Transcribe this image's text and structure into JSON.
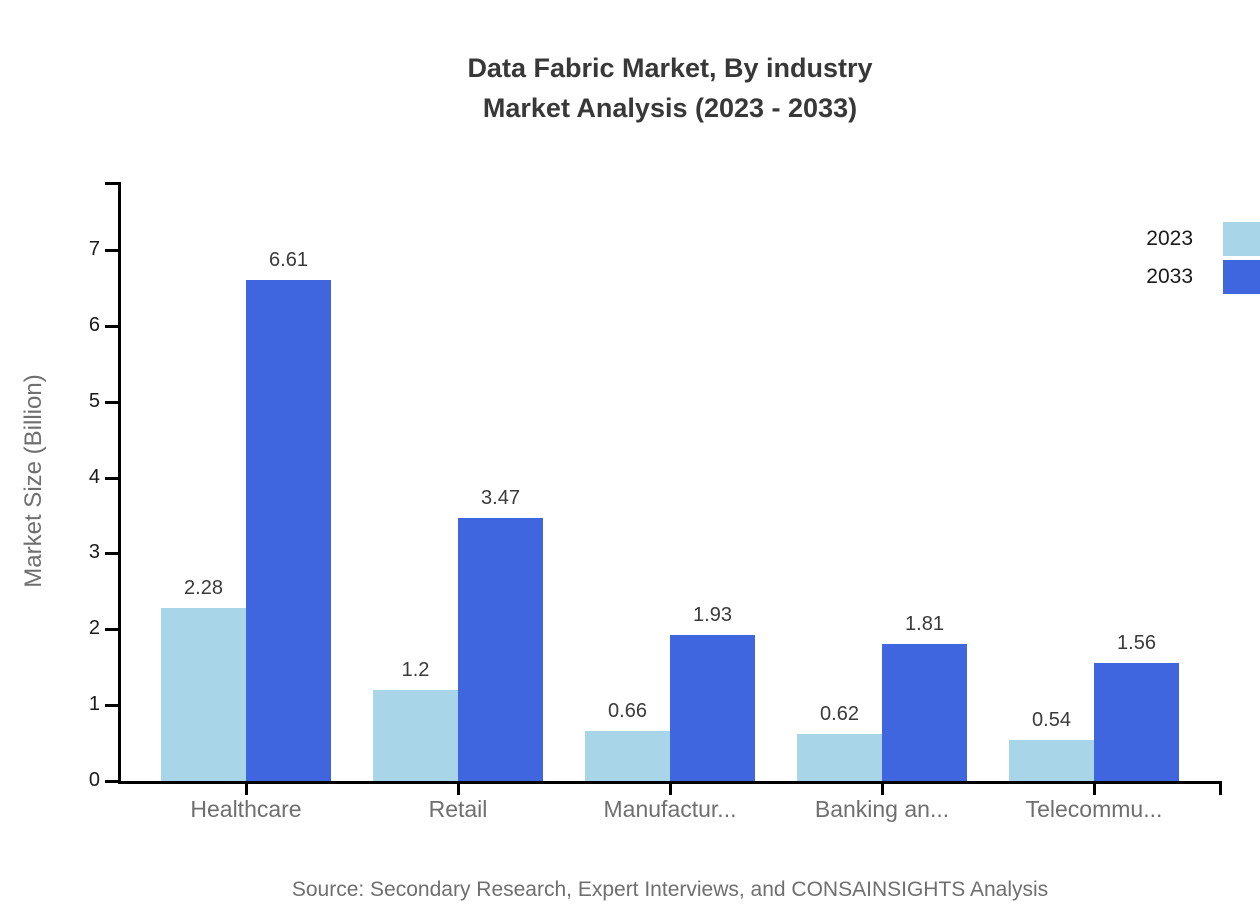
{
  "header": {
    "title_line1": "Data Fabric Market, By industry",
    "title_line2": "Market Analysis (2023 - 2033)"
  },
  "footer": {
    "source": "Source: Secondary Research, Expert Interviews, and CONSAINSIGHTS Analysis"
  },
  "chart_data": {
    "type": "bar",
    "title": "Data Fabric Market, By industry Market Analysis (2023 - 2033)",
    "categories": [
      "Healthcare",
      "Retail",
      "Manufactur...",
      "Banking an...",
      "Telecommu..."
    ],
    "series": [
      {
        "name": "2023",
        "color": "#a9d5e8",
        "values": [
          2.28,
          1.2,
          0.66,
          0.62,
          0.54
        ]
      },
      {
        "name": "2033",
        "color": "#3f65df",
        "values": [
          6.61,
          3.47,
          1.93,
          1.81,
          1.56
        ]
      }
    ],
    "xlabel": "",
    "ylabel": "Market Size (Billion)",
    "yticks": [
      0,
      1,
      2,
      3,
      4,
      5,
      6,
      7
    ],
    "ylim": [
      0,
      7.9
    ],
    "grid": false,
    "legend_position": "top-right",
    "value_labels": true
  },
  "colors": {
    "axis": "#000000",
    "tick_label": "#1a1a1a",
    "category_label": "#6f6f6f",
    "value_label": "#3a3a3a",
    "title": "#383838",
    "muted_text": "#6f6f6f"
  }
}
